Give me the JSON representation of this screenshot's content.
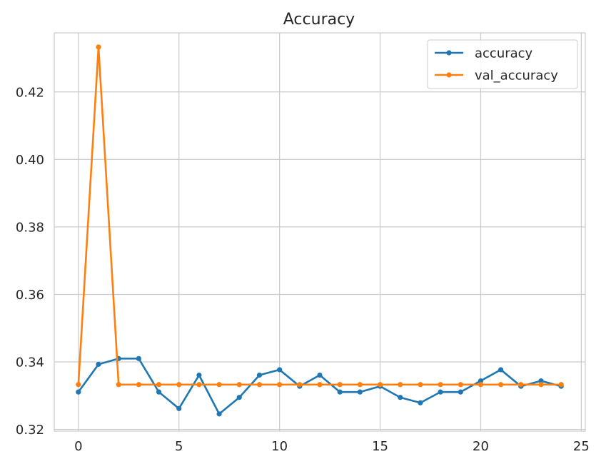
{
  "chart_data": {
    "type": "line",
    "title": "Accuracy",
    "xlabel": "",
    "ylabel": "",
    "xlim": [
      -1.2,
      25.2
    ],
    "ylim": [
      0.3195,
      0.4375
    ],
    "xticks": [
      0,
      5,
      10,
      15,
      20,
      25
    ],
    "xtick_labels": [
      "0",
      "5",
      "10",
      "15",
      "20",
      "25"
    ],
    "yticks": [
      0.32,
      0.34,
      0.36,
      0.38,
      0.4,
      0.42
    ],
    "ytick_labels": [
      "0.32",
      "0.34",
      "0.36",
      "0.38",
      "0.40",
      "0.42"
    ],
    "grid": true,
    "legend_position": "top-right",
    "x": [
      0,
      1,
      2,
      3,
      4,
      5,
      6,
      7,
      8,
      9,
      10,
      11,
      12,
      13,
      14,
      15,
      16,
      17,
      18,
      19,
      20,
      21,
      22,
      23,
      24
    ],
    "series": [
      {
        "name": "accuracy",
        "color": "#1f77b4",
        "values": [
          0.3311,
          0.3393,
          0.341,
          0.341,
          0.3311,
          0.3262,
          0.3361,
          0.3246,
          0.3295,
          0.3361,
          0.3377,
          0.3328,
          0.3361,
          0.3311,
          0.3311,
          0.3328,
          0.3295,
          0.3279,
          0.3311,
          0.3311,
          0.3344,
          0.3377,
          0.3328,
          0.3344,
          0.3328
        ]
      },
      {
        "name": "val_accuracy",
        "color": "#ff7f0e",
        "values": [
          0.3333,
          0.4333,
          0.3333,
          0.3333,
          0.3333,
          0.3333,
          0.3333,
          0.3333,
          0.3333,
          0.3333,
          0.3333,
          0.3333,
          0.3333,
          0.3333,
          0.3333,
          0.3333,
          0.3333,
          0.3333,
          0.3333,
          0.3333,
          0.3333,
          0.3333,
          0.3333,
          0.3333,
          0.3333
        ]
      }
    ]
  }
}
